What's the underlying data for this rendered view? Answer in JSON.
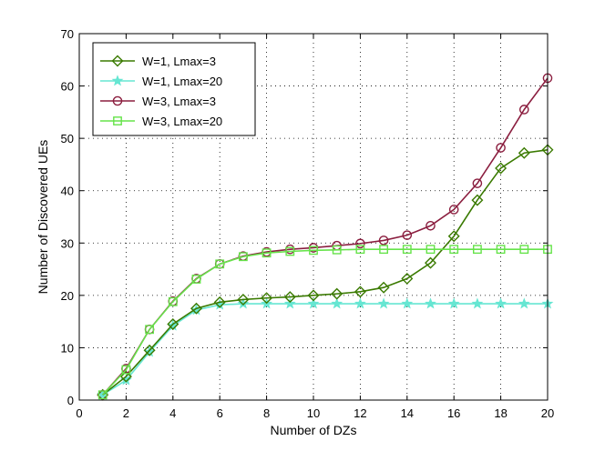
{
  "chart_data": {
    "type": "line",
    "title": "",
    "xlabel": "Number of DZs",
    "ylabel": "Number of Discovered UEs",
    "xlim": [
      0,
      20
    ],
    "ylim": [
      0,
      70
    ],
    "xticks": [
      0,
      2,
      4,
      6,
      8,
      10,
      12,
      14,
      16,
      18,
      20
    ],
    "yticks": [
      0,
      10,
      20,
      30,
      40,
      50,
      60,
      70
    ],
    "grid": true,
    "legend_position": "top-left",
    "x": [
      1,
      2,
      3,
      4,
      5,
      6,
      7,
      8,
      9,
      10,
      11,
      12,
      13,
      14,
      15,
      16,
      17,
      18,
      19,
      20
    ],
    "series": [
      {
        "name": "W=1, Lmax=3",
        "color": "#3a7a00",
        "marker": "diamond",
        "values": [
          1.0,
          4.5,
          9.5,
          14.5,
          17.5,
          18.7,
          19.2,
          19.5,
          19.7,
          20.0,
          20.3,
          20.7,
          21.5,
          23.2,
          26.2,
          31.3,
          38.2,
          44.3,
          47.2,
          47.8
        ]
      },
      {
        "name": "W=1, Lmax=20",
        "color": "#66e6d2",
        "marker": "star",
        "values": [
          1.0,
          3.8,
          9.2,
          14.2,
          17.2,
          18.2,
          18.4,
          18.4,
          18.4,
          18.4,
          18.4,
          18.4,
          18.4,
          18.4,
          18.4,
          18.4,
          18.4,
          18.4,
          18.4,
          18.4
        ]
      },
      {
        "name": "W=3, Lmax=3",
        "color": "#8b1e3f",
        "marker": "circle",
        "values": [
          1.0,
          6.0,
          13.5,
          18.9,
          23.2,
          26.0,
          27.5,
          28.3,
          28.8,
          29.1,
          29.5,
          29.9,
          30.5,
          31.5,
          33.3,
          36.4,
          41.4,
          48.2,
          55.5,
          61.5
        ]
      },
      {
        "name": "W=3, Lmax=20",
        "color": "#66e34a",
        "marker": "square",
        "values": [
          1.0,
          5.8,
          13.5,
          18.8,
          23.1,
          26.0,
          27.4,
          28.1,
          28.4,
          28.6,
          28.7,
          28.8,
          28.8,
          28.8,
          28.8,
          28.8,
          28.8,
          28.8,
          28.8,
          28.8
        ]
      }
    ]
  }
}
